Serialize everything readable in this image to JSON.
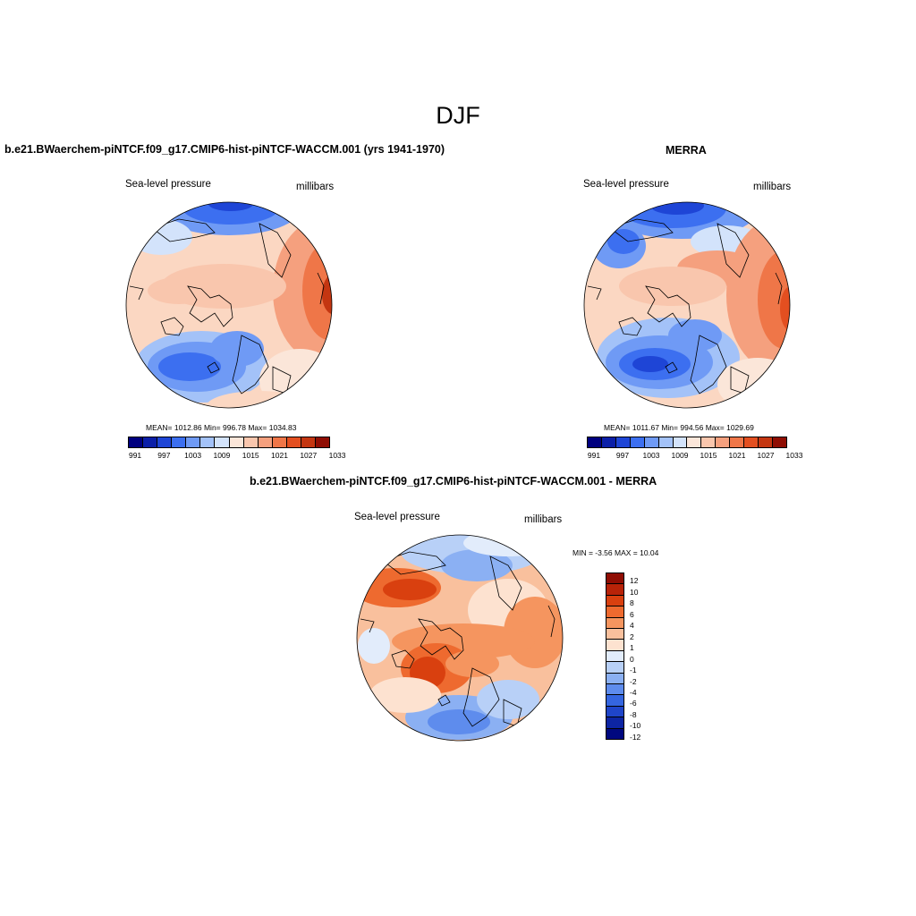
{
  "figure": {
    "title": "DJF"
  },
  "panels": {
    "model": {
      "title": "b.e21.BWaerchem-piNTCF.f09_g17.CMIP6-hist-piNTCF-WACCM.001 (yrs 1941-1970)",
      "left_label": "Sea-level pressure",
      "right_label": "millibars",
      "stats": "MEAN= 1012.86  Min= 996.78  Max= 1034.83",
      "colorbar_ticks": [
        "991",
        "997",
        "1003",
        "1009",
        "1015",
        "1021",
        "1027",
        "1033"
      ]
    },
    "obs": {
      "title": "MERRA",
      "left_label": "Sea-level pressure",
      "right_label": "millibars",
      "stats": "MEAN= 1011.67  Min= 994.56  Max= 1029.69",
      "colorbar_ticks": [
        "991",
        "997",
        "1003",
        "1009",
        "1015",
        "1021",
        "1027",
        "1033"
      ]
    },
    "diff": {
      "title": "b.e21.BWaerchem-piNTCF.f09_g17.CMIP6-hist-piNTCF-WACCM.001 - MERRA",
      "left_label": "Sea-level pressure",
      "right_label": "millibars",
      "stats": "MIN =  -3.56 MAX =  10.04",
      "colorbar_ticks": [
        "12",
        "10",
        "8",
        "6",
        "4",
        "2",
        "1",
        "0",
        "-1",
        "-2",
        "-4",
        "-6",
        "-8",
        "-10",
        "-12"
      ]
    }
  },
  "colors": {
    "abs_scale": [
      "#00007f",
      "#0b1fa8",
      "#1e45d6",
      "#3c6ff0",
      "#6f9af5",
      "#a3c2f8",
      "#d3e3fb",
      "#fbe6d9",
      "#f9c6ad",
      "#f5a07e",
      "#ef7648",
      "#e34f20",
      "#c43611",
      "#8f0d03"
    ],
    "diff_scale": [
      "#8f0d03",
      "#b82308",
      "#d9400f",
      "#ee6a2f",
      "#f5955f",
      "#f9c09d",
      "#fde2d0",
      "#e2ecfb",
      "#b8d0f7",
      "#8bb0f3",
      "#5e8ced",
      "#3566e0",
      "#1f45c9",
      "#0d25a3",
      "#00087f"
    ],
    "ocean_base": "#fbd7c2",
    "land_line": "#000000"
  }
}
